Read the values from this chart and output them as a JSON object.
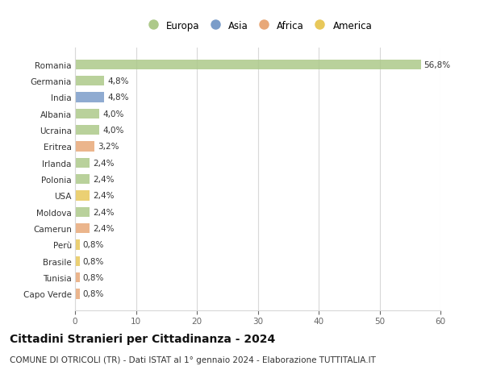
{
  "countries": [
    "Capo Verde",
    "Tunisia",
    "Brasile",
    "Perù",
    "Camerun",
    "Moldova",
    "USA",
    "Polonia",
    "Irlanda",
    "Eritrea",
    "Ucraina",
    "Albania",
    "India",
    "Germania",
    "Romania"
  ],
  "values": [
    0.8,
    0.8,
    0.8,
    0.8,
    2.4,
    2.4,
    2.4,
    2.4,
    2.4,
    3.2,
    4.0,
    4.0,
    4.8,
    4.8,
    56.8
  ],
  "labels": [
    "0,8%",
    "0,8%",
    "0,8%",
    "0,8%",
    "2,4%",
    "2,4%",
    "2,4%",
    "2,4%",
    "2,4%",
    "3,2%",
    "4,0%",
    "4,0%",
    "4,8%",
    "4,8%",
    "56,8%"
  ],
  "continents": [
    "Africa",
    "Africa",
    "America",
    "America",
    "Africa",
    "Europa",
    "America",
    "Europa",
    "Europa",
    "Africa",
    "Europa",
    "Europa",
    "Asia",
    "Europa",
    "Europa"
  ],
  "continent_colors": {
    "Europa": "#adc98a",
    "Asia": "#7b9dc9",
    "Africa": "#e8a878",
    "America": "#e8c85a"
  },
  "legend_items": [
    "Europa",
    "Asia",
    "Africa",
    "America"
  ],
  "title": "Cittadini Stranieri per Cittadinanza - 2024",
  "subtitle": "COMUNE DI OTRICOLI (TR) - Dati ISTAT al 1° gennaio 2024 - Elaborazione TUTTITALIA.IT",
  "xlim": [
    0,
    60
  ],
  "xticks": [
    0,
    10,
    20,
    30,
    40,
    50,
    60
  ],
  "background_color": "#ffffff",
  "grid_color": "#d8d8d8",
  "bar_height": 0.6,
  "title_fontsize": 10,
  "subtitle_fontsize": 7.5,
  "label_fontsize": 7.5,
  "tick_fontsize": 7.5,
  "legend_fontsize": 8.5
}
